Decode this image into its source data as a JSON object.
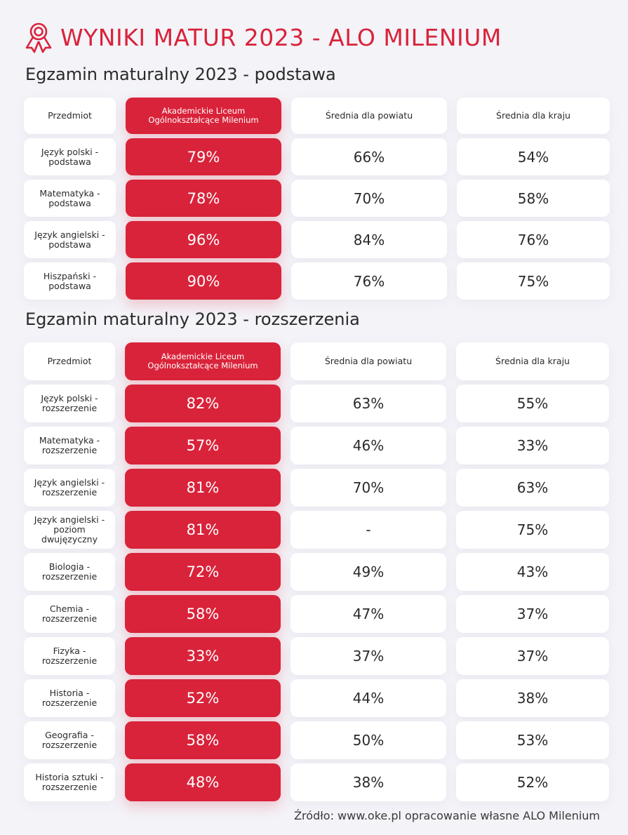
{
  "header": {
    "icon": "award-ribbon-icon",
    "title": "WYNIKI MATUR 2023 - ALO MILENIUM",
    "accent_color": "#d9233a"
  },
  "basic": {
    "title": "Egzamin maturalny 2023 - podstawa",
    "columns": [
      "Przedmiot",
      "Akademickie Liceum Ogólnokształcące Milenium",
      "Średnia dla powiatu",
      "Średnia dla kraju"
    ],
    "rows": [
      {
        "subject": "Język polski - podstawa",
        "school": "79%",
        "county": "66%",
        "country": "54%"
      },
      {
        "subject": "Matematyka - podstawa",
        "school": "78%",
        "county": "70%",
        "country": "58%"
      },
      {
        "subject": "Język angielski - podstawa",
        "school": "96%",
        "county": "84%",
        "country": "76%"
      },
      {
        "subject": "Hiszpański - podstawa",
        "school": "90%",
        "county": "76%",
        "country": "75%"
      }
    ]
  },
  "extended": {
    "title": "Egzamin maturalny 2023 - rozszerzenia",
    "columns": [
      "Przedmiot",
      "Akademickie Liceum Ogólnokształcące Milenium",
      "Średnia dla powiatu",
      "Średnia dla kraju"
    ],
    "rows": [
      {
        "subject": "Język polski - rozszerzenie",
        "school": "82%",
        "county": "63%",
        "country": "55%"
      },
      {
        "subject": "Matematyka - rozszerzenie",
        "school": "57%",
        "county": "46%",
        "country": "33%"
      },
      {
        "subject": "Język angielski - rozszerzenie",
        "school": "81%",
        "county": "70%",
        "country": "63%"
      },
      {
        "subject": "Język angielski - poziom dwujęzyczny",
        "school": "81%",
        "county": "-",
        "country": "75%"
      },
      {
        "subject": "Biologia - rozszerzenie",
        "school": "72%",
        "county": "49%",
        "country": "43%"
      },
      {
        "subject": "Chemia - rozszerzenie",
        "school": "58%",
        "county": "47%",
        "country": "37%"
      },
      {
        "subject": "Fizyka - rozszerzenie",
        "school": "33%",
        "county": "37%",
        "country": "37%"
      },
      {
        "subject": "Historia - rozszerzenie",
        "school": "52%",
        "county": "44%",
        "country": "38%"
      },
      {
        "subject": "Geografia - rozszerzenie",
        "school": "58%",
        "county": "50%",
        "country": "53%"
      },
      {
        "subject": "Historia sztuki - rozszerzenie",
        "school": "48%",
        "county": "38%",
        "country": "52%"
      }
    ]
  },
  "footer": {
    "source": "Źródło: www.oke.pl opracowanie własne ALO Milenium"
  }
}
